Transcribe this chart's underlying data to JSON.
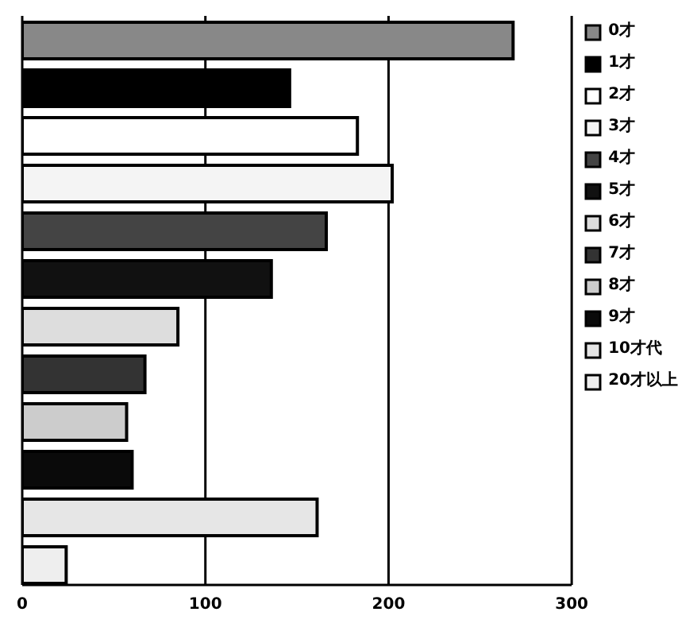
{
  "chart_data": {
    "type": "bar",
    "orientation": "horizontal",
    "categories": [
      null
    ],
    "series": [
      {
        "name": "0才",
        "color": "#888888",
        "values": [
          268
        ]
      },
      {
        "name": "1才",
        "color": "#000000",
        "values": [
          146
        ]
      },
      {
        "name": "2才",
        "color": "#ffffff",
        "values": [
          183
        ]
      },
      {
        "name": "3才",
        "color": "#f4f4f4",
        "values": [
          202
        ]
      },
      {
        "name": "4才",
        "color": "#444444",
        "values": [
          166
        ]
      },
      {
        "name": "5才",
        "color": "#111111",
        "values": [
          136
        ]
      },
      {
        "name": "6才",
        "color": "#dddddd",
        "values": [
          85
        ]
      },
      {
        "name": "7才",
        "color": "#333333",
        "values": [
          67
        ]
      },
      {
        "name": "8才",
        "color": "#cccccc",
        "values": [
          57
        ]
      },
      {
        "name": "9才",
        "color": "#0a0a0a",
        "values": [
          60
        ]
      },
      {
        "name": "10才代",
        "color": "#e6e6e6",
        "values": [
          161
        ]
      },
      {
        "name": "20才以上",
        "color": "#eeeeee",
        "values": [
          24
        ]
      }
    ],
    "xlim": [
      0,
      300
    ],
    "xticks": [
      0,
      100,
      200,
      300
    ],
    "grid": "x",
    "legend": "right",
    "tick_labels": "x"
  }
}
